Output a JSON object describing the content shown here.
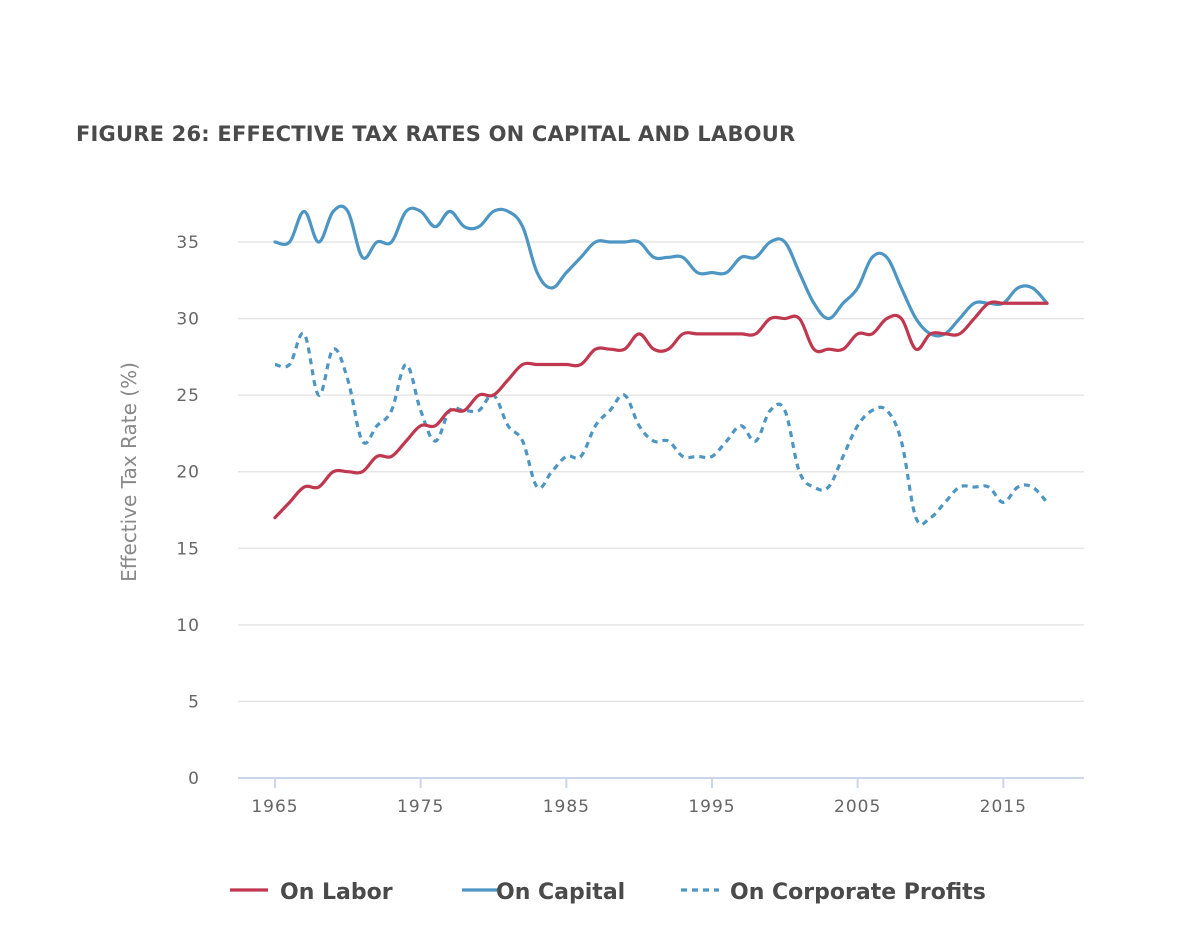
{
  "chart_data": {
    "type": "line",
    "title": "FIGURE 26: EFFECTIVE TAX RATES ON CAPITAL AND LABOUR",
    "xlabel": "",
    "ylabel": "Effective Tax Rate (%)",
    "xlim": [
      1965,
      2018
    ],
    "ylim": [
      0,
      35
    ],
    "x_ticks": [
      1965,
      1975,
      1985,
      1995,
      2005,
      2015
    ],
    "y_ticks": [
      0,
      5,
      10,
      15,
      20,
      25,
      30,
      35
    ],
    "grid": true,
    "legend_position": "bottom-center",
    "x": [
      1965,
      1966,
      1967,
      1968,
      1969,
      1970,
      1971,
      1972,
      1973,
      1974,
      1975,
      1976,
      1977,
      1978,
      1979,
      1980,
      1981,
      1982,
      1983,
      1984,
      1985,
      1986,
      1987,
      1988,
      1989,
      1990,
      1991,
      1992,
      1993,
      1994,
      1995,
      1996,
      1997,
      1998,
      1999,
      2000,
      2001,
      2002,
      2003,
      2004,
      2005,
      2006,
      2007,
      2008,
      2009,
      2010,
      2011,
      2012,
      2013,
      2014,
      2015,
      2016,
      2017,
      2018
    ],
    "series": [
      {
        "name": "On Labor",
        "color": "#c0384f",
        "dash": "solid",
        "values": [
          17,
          18,
          19,
          19,
          20,
          20,
          20,
          21,
          21,
          22,
          23,
          23,
          24,
          24,
          25,
          25,
          26,
          27,
          27,
          27,
          27,
          27,
          28,
          28,
          28,
          29,
          28,
          28,
          29,
          29,
          29,
          29,
          29,
          29,
          30,
          30,
          30,
          28,
          28,
          28,
          29,
          29,
          30,
          30,
          28,
          29,
          29,
          29,
          30,
          31,
          31,
          31,
          31,
          31
        ]
      },
      {
        "name": "On Capital",
        "color": "#4d96c3",
        "dash": "solid",
        "values": [
          35,
          35,
          37,
          35,
          37,
          37,
          34,
          35,
          35,
          37,
          37,
          36,
          37,
          36,
          36,
          37,
          37,
          36,
          33,
          32,
          33,
          34,
          35,
          35,
          35,
          35,
          34,
          34,
          34,
          33,
          33,
          33,
          34,
          34,
          35,
          35,
          33,
          31,
          30,
          31,
          32,
          34,
          34,
          32,
          30,
          29,
          29,
          30,
          31,
          31,
          31,
          32,
          32,
          31
        ]
      },
      {
        "name": "On Corporate Profits",
        "color": "#4d96c3",
        "dash": "dashed",
        "values": [
          27,
          27,
          29,
          25,
          28,
          26,
          22,
          23,
          24,
          27,
          24,
          22,
          24,
          24,
          24,
          25,
          23,
          22,
          19,
          20,
          21,
          21,
          23,
          24,
          25,
          23,
          22,
          22,
          21,
          21,
          21,
          22,
          23,
          22,
          24,
          24,
          20,
          19,
          19,
          21,
          23,
          24,
          24,
          22,
          17,
          17,
          18,
          19,
          19,
          19,
          18,
          19,
          19,
          18
        ]
      }
    ]
  }
}
